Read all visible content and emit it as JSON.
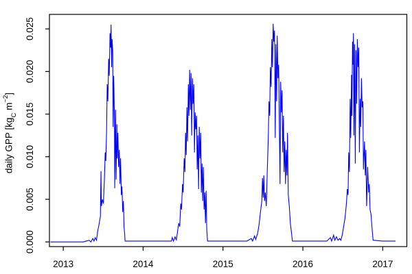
{
  "chart_data": {
    "type": "line",
    "title": "",
    "xlabel": "",
    "ylabel": "daily GPP [kg_C m^-2]",
    "ylabel_parts": {
      "prefix": "daily GPP [kg",
      "sub": "C",
      "mid": " m",
      "sup": "−2",
      "suffix": "]"
    },
    "legend_position": "none",
    "grid": false,
    "background": "#FFFFFF",
    "axis_color": "#000000",
    "xlim": [
      2012.827,
      2017.302
    ],
    "ylim": [
      -0.00055,
      0.0267
    ],
    "x_ticks": [
      {
        "label": "2013",
        "value": 2013
      },
      {
        "label": "2014",
        "value": 2014
      },
      {
        "label": "2015",
        "value": 2015
      },
      {
        "label": "2016",
        "value": 2016
      },
      {
        "label": "2017",
        "value": 2017
      }
    ],
    "y_ticks": [
      {
        "label": "0.000",
        "value": 0.0
      },
      {
        "label": "0.005",
        "value": 0.005
      },
      {
        "label": "0.010",
        "value": 0.01
      },
      {
        "label": "0.015",
        "value": 0.015
      },
      {
        "label": "0.020",
        "value": 0.02
      },
      {
        "label": "0.025",
        "value": 0.025
      }
    ],
    "series": [
      {
        "name": "daily GPP",
        "color": "#0000FF",
        "points": [
          [
            2012.84,
            0
          ],
          [
            2013.05,
            0
          ],
          [
            2013.25,
            0
          ],
          [
            2013.325,
            0.0002
          ],
          [
            2013.345,
            0
          ],
          [
            2013.37,
            0.0004
          ],
          [
            2013.385,
            0.0001
          ],
          [
            2013.4,
            0.0005
          ],
          [
            2013.415,
            0.0002
          ],
          [
            2013.425,
            0.0008
          ],
          [
            2013.43,
            0.0012
          ],
          [
            2013.447,
            0.002
          ],
          [
            2013.465,
            0.003
          ],
          [
            2013.473,
            0.0083
          ],
          [
            2013.477,
            0.0042
          ],
          [
            2013.49,
            0.005
          ],
          [
            2013.503,
            0.0045
          ],
          [
            2013.516,
            0.0075
          ],
          [
            2013.525,
            0.0105
          ],
          [
            2013.533,
            0.0095
          ],
          [
            2013.542,
            0.013
          ],
          [
            2013.55,
            0.0185
          ],
          [
            2013.559,
            0.0165
          ],
          [
            2013.568,
            0.0215
          ],
          [
            2013.576,
            0.0195
          ],
          [
            2013.585,
            0.0245
          ],
          [
            2013.593,
            0.0228
          ],
          [
            2013.598,
            0.0255
          ],
          [
            2013.606,
            0.0205
          ],
          [
            2013.611,
            0.0238
          ],
          [
            2013.619,
            0.0225
          ],
          [
            2013.624,
            0.0135
          ],
          [
            2013.632,
            0.0195
          ],
          [
            2013.641,
            0.0145
          ],
          [
            2013.645,
            0.0063
          ],
          [
            2013.654,
            0.0155
          ],
          [
            2013.662,
            0.0073
          ],
          [
            2013.671,
            0.0138
          ],
          [
            2013.675,
            0.0098
          ],
          [
            2013.684,
            0.0128
          ],
          [
            2013.693,
            0.0088
          ],
          [
            2013.701,
            0.0108
          ],
          [
            2013.71,
            0.0068
          ],
          [
            2013.718,
            0.0098
          ],
          [
            2013.727,
            0.0055
          ],
          [
            2013.735,
            0.0065
          ],
          [
            2013.744,
            0.0035
          ],
          [
            2013.753,
            0.0048
          ],
          [
            2013.761,
            0.0018
          ],
          [
            2013.77,
            0.0008
          ],
          [
            2013.774,
            0.0001
          ],
          [
            2013.85,
            0.0001
          ],
          [
            2014.0,
            0.0001
          ],
          [
            2014.2,
            0.0001
          ],
          [
            2014.355,
            0.0001
          ],
          [
            2014.365,
            0.0005
          ],
          [
            2014.38,
            0.0001
          ],
          [
            2014.4,
            0.0006
          ],
          [
            2014.415,
            0.0002
          ],
          [
            2014.428,
            0.001
          ],
          [
            2014.445,
            0.0022
          ],
          [
            2014.458,
            0.0018
          ],
          [
            2014.471,
            0.0045
          ],
          [
            2014.48,
            0.0038
          ],
          [
            2014.493,
            0.0068
          ],
          [
            2014.501,
            0.0058
          ],
          [
            2014.514,
            0.0098
          ],
          [
            2014.523,
            0.0082
          ],
          [
            2014.531,
            0.0128
          ],
          [
            2014.54,
            0.0102
          ],
          [
            2014.548,
            0.0158
          ],
          [
            2014.557,
            0.0118
          ],
          [
            2014.566,
            0.0185
          ],
          [
            2014.574,
            0.0148
          ],
          [
            2014.583,
            0.0202
          ],
          [
            2014.591,
            0.0155
          ],
          [
            2014.6,
            0.0198
          ],
          [
            2014.608,
            0.0125
          ],
          [
            2014.617,
            0.0192
          ],
          [
            2014.626,
            0.0162
          ],
          [
            2014.634,
            0.0185
          ],
          [
            2014.643,
            0.0105
          ],
          [
            2014.651,
            0.0152
          ],
          [
            2014.66,
            0.0132
          ],
          [
            2014.669,
            0.0148
          ],
          [
            2014.677,
            0.0085
          ],
          [
            2014.686,
            0.0125
          ],
          [
            2014.694,
            0.0062
          ],
          [
            2014.703,
            0.0135
          ],
          [
            2014.712,
            0.0098
          ],
          [
            2014.72,
            0.0128
          ],
          [
            2014.729,
            0.0058
          ],
          [
            2014.737,
            0.0092
          ],
          [
            2014.746,
            0.0048
          ],
          [
            2014.754,
            0.0088
          ],
          [
            2014.763,
            0.0038
          ],
          [
            2014.772,
            0.0058
          ],
          [
            2014.78,
            0.0022
          ],
          [
            2014.789,
            0.006
          ],
          [
            2014.797,
            0.0015
          ],
          [
            2014.806,
            0.0001
          ],
          [
            2014.9,
            0.0001
          ],
          [
            2015.1,
            0.0001
          ],
          [
            2015.3,
            0.0001
          ],
          [
            2015.355,
            0.0004
          ],
          [
            2015.37,
            0.0001
          ],
          [
            2015.395,
            0.0007
          ],
          [
            2015.41,
            0.0003
          ],
          [
            2015.434,
            0.001
          ],
          [
            2015.451,
            0.002
          ],
          [
            2015.469,
            0.0035
          ],
          [
            2015.486,
            0.0048
          ],
          [
            2015.494,
            0.0075
          ],
          [
            2015.503,
            0.0052
          ],
          [
            2015.511,
            0.0078
          ],
          [
            2015.52,
            0.0048
          ],
          [
            2015.529,
            0.0058
          ],
          [
            2015.542,
            0.0042
          ],
          [
            2015.555,
            0.0085
          ],
          [
            2015.568,
            0.0125
          ],
          [
            2015.576,
            0.0165
          ],
          [
            2015.585,
            0.0148
          ],
          [
            2015.593,
            0.0205
          ],
          [
            2015.602,
            0.0182
          ],
          [
            2015.611,
            0.0238
          ],
          [
            2015.619,
            0.0205
          ],
          [
            2015.628,
            0.0256
          ],
          [
            2015.637,
            0.0235
          ],
          [
            2015.645,
            0.0248
          ],
          [
            2015.654,
            0.0122
          ],
          [
            2015.662,
            0.0232
          ],
          [
            2015.671,
            0.0165
          ],
          [
            2015.679,
            0.0242
          ],
          [
            2015.688,
            0.0192
          ],
          [
            2015.697,
            0.0208
          ],
          [
            2015.705,
            0.0145
          ],
          [
            2015.714,
            0.0068
          ],
          [
            2015.722,
            0.0188
          ],
          [
            2015.731,
            0.0152
          ],
          [
            2015.74,
            0.0178
          ],
          [
            2015.748,
            0.0105
          ],
          [
            2015.757,
            0.0148
          ],
          [
            2015.765,
            0.0082
          ],
          [
            2015.774,
            0.0118
          ],
          [
            2015.783,
            0.0068
          ],
          [
            2015.791,
            0.0108
          ],
          [
            2015.8,
            0.0078
          ],
          [
            2015.808,
            0.0128
          ],
          [
            2015.817,
            0.0055
          ],
          [
            2015.83,
            0.0042
          ],
          [
            2015.843,
            0.0022
          ],
          [
            2015.856,
            0.0012
          ],
          [
            2015.869,
            0.0001
          ],
          [
            2015.95,
            0.0001
          ],
          [
            2016.1,
            0.0001
          ],
          [
            2016.3,
            0.0001
          ],
          [
            2016.345,
            0.0005
          ],
          [
            2016.36,
            0.0001
          ],
          [
            2016.385,
            0.0008
          ],
          [
            2016.4,
            0.0002
          ],
          [
            2016.42,
            0.0006
          ],
          [
            2016.44,
            0.0002
          ],
          [
            2016.46,
            0.0004
          ],
          [
            2016.475,
            0.0002
          ],
          [
            2016.493,
            0.0008
          ],
          [
            2016.51,
            0.0018
          ],
          [
            2016.527,
            0.0028
          ],
          [
            2016.545,
            0.0045
          ],
          [
            2016.557,
            0.0062
          ],
          [
            2016.566,
            0.0055
          ],
          [
            2016.574,
            0.0105
          ],
          [
            2016.583,
            0.0082
          ],
          [
            2016.592,
            0.0168
          ],
          [
            2016.6,
            0.0122
          ],
          [
            2016.609,
            0.0196
          ],
          [
            2016.613,
            0.0148
          ],
          [
            2016.622,
            0.0235
          ],
          [
            2016.629,
            0.0208
          ],
          [
            2016.633,
            0.0245
          ],
          [
            2016.639,
            0.0125
          ],
          [
            2016.648,
            0.0232
          ],
          [
            2016.656,
            0.0092
          ],
          [
            2016.665,
            0.0225
          ],
          [
            2016.674,
            0.0162
          ],
          [
            2016.682,
            0.0238
          ],
          [
            2016.691,
            0.0205
          ],
          [
            2016.699,
            0.0228
          ],
          [
            2016.708,
            0.0105
          ],
          [
            2016.717,
            0.0168
          ],
          [
            2016.725,
            0.0135
          ],
          [
            2016.734,
            0.0192
          ],
          [
            2016.742,
            0.0158
          ],
          [
            2016.751,
            0.0165
          ],
          [
            2016.759,
            0.0085
          ],
          [
            2016.772,
            0.0118
          ],
          [
            2016.781,
            0.0078
          ],
          [
            2016.789,
            0.0108
          ],
          [
            2016.798,
            0.0042
          ],
          [
            2016.811,
            0.0088
          ],
          [
            2016.824,
            0.0058
          ],
          [
            2016.832,
            0.0068
          ],
          [
            2016.841,
            0.0038
          ],
          [
            2016.854,
            0.0032
          ],
          [
            2016.867,
            0.0015
          ],
          [
            2016.88,
            0.0002
          ],
          [
            2017.0,
            0.0001
          ],
          [
            2017.16,
            0.0001
          ]
        ]
      }
    ]
  }
}
